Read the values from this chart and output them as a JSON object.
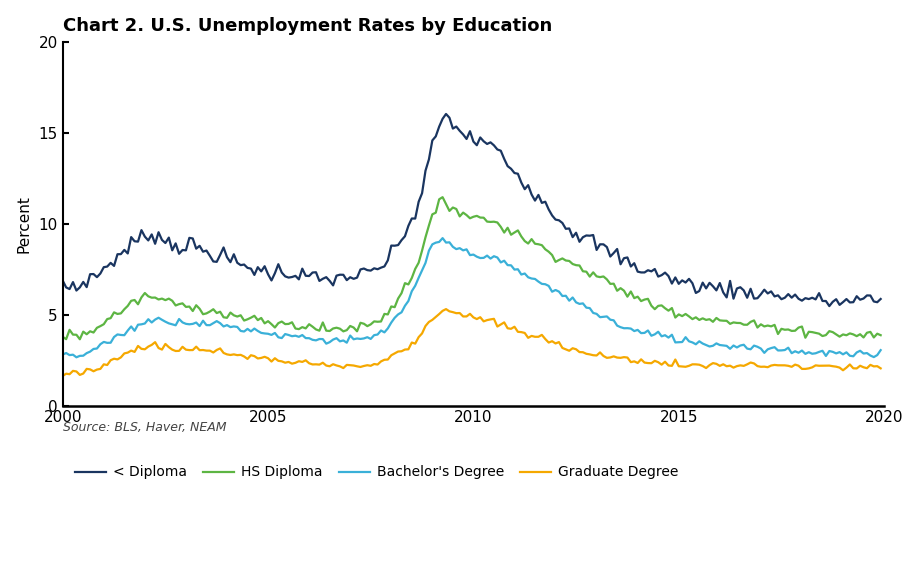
{
  "title": "Chart 2. U.S. Unemployment Rates by Education",
  "ylabel": "Percent",
  "source": "Source: BLS, Haver, NEAM",
  "xlim": [
    2000,
    2020
  ],
  "ylim": [
    0,
    20
  ],
  "yticks": [
    0,
    5,
    10,
    15,
    20
  ],
  "xticks": [
    2000,
    2005,
    2010,
    2015,
    2020
  ],
  "colors": {
    "less_diploma": "#1a3560",
    "hs_diploma": "#5db543",
    "bachelors": "#3ab0d8",
    "graduate": "#f5a800"
  },
  "legend_labels": [
    "< Diploma",
    "HS Diploma",
    "Bachelor's Degree",
    "Graduate Degree"
  ],
  "background_color": "#ffffff",
  "title_fontsize": 13,
  "axis_fontsize": 11,
  "legend_fontsize": 10,
  "source_fontsize": 9,
  "linewidth": 1.6
}
